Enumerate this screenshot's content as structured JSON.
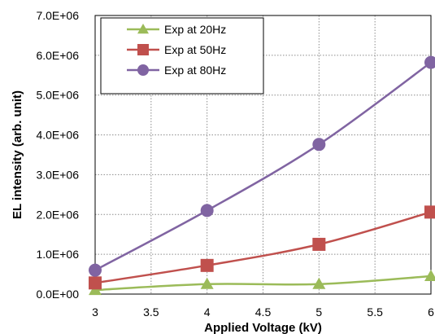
{
  "chart_data": {
    "type": "line",
    "title": "",
    "xlabel": "Applied Voltage (kV)",
    "ylabel": "EL intensity (arb. unit)",
    "x": [
      3,
      4,
      5,
      6
    ],
    "xlim": [
      3,
      6
    ],
    "ylim": [
      0,
      7000000
    ],
    "x_ticks": [
      3,
      3.5,
      4,
      4.5,
      5,
      5.5,
      6
    ],
    "x_tick_labels": [
      "3",
      "3.5",
      "4",
      "4.5",
      "5",
      "5.5",
      "6"
    ],
    "y_ticks": [
      0,
      1000000,
      2000000,
      3000000,
      4000000,
      5000000,
      6000000,
      7000000
    ],
    "y_tick_labels": [
      "0.0E+00",
      "1.0E+06",
      "2.0E+06",
      "3.0E+06",
      "4.0E+06",
      "5.0E+06",
      "6.0E+06",
      "7.0E+06"
    ],
    "grid": true,
    "legend_position": "top-left",
    "series": [
      {
        "name": "Exp at 20Hz",
        "marker": "triangle",
        "color": "#9bbb59",
        "values": [
          100000,
          250000,
          250000,
          450000
        ]
      },
      {
        "name": "Exp at 50Hz",
        "marker": "square",
        "color": "#c0504d",
        "values": [
          280000,
          720000,
          1250000,
          2060000
        ]
      },
      {
        "name": "Exp at 80Hz",
        "marker": "circle",
        "color": "#8064a2",
        "values": [
          600000,
          2100000,
          3760000,
          5820000
        ]
      }
    ]
  }
}
